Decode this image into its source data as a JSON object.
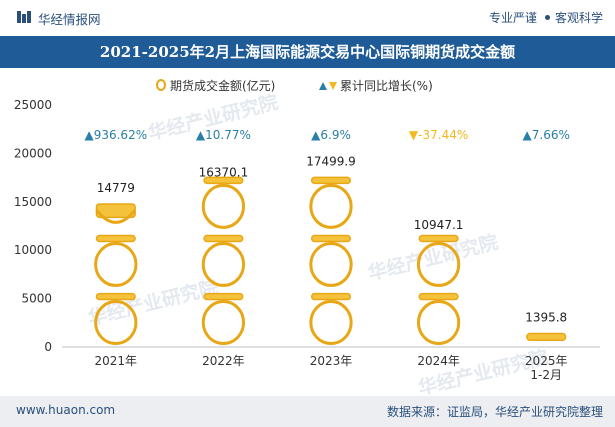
{
  "header": {
    "brand": "华经情报网",
    "tag1": "专业严谨",
    "tag2": "客观科学"
  },
  "title": "2021-2025年2月上海国际能源交易中心国际铜期货成交金额",
  "footer": {
    "url": "www.huaon.com",
    "source": "数据来源：证监局，华经产业研究院整理"
  },
  "watermark": "华经产业研究院",
  "colors": {
    "bar": "#f5c33b",
    "bar_edge": "#e8a716",
    "up": "#2a7fa8",
    "down": "#f2b81d",
    "title_bg": "#1f5b96"
  },
  "chart_data": {
    "type": "bar",
    "categories": [
      "2021年",
      "2022年",
      "2023年",
      "2024年",
      "2025年\n1-2月"
    ],
    "series": [
      {
        "name": "期货成交金额(亿元)",
        "values": [
          14779,
          16370.1,
          17499.9,
          10947.1,
          1395.8
        ],
        "value_labels": [
          "14779",
          "16370.1",
          "17499.9",
          "10947.1",
          "1395.8"
        ]
      },
      {
        "name": "累计同比增长(%)",
        "values": [
          936.62,
          10.77,
          6.9,
          -37.44,
          7.66
        ],
        "value_labels": [
          "▲936.62%",
          "▲10.77%",
          "▲6.9%",
          "▼-37.44%",
          "▲7.66%"
        ]
      }
    ],
    "y_ticks": [
      "0",
      "5000",
      "10000",
      "15000",
      "20000",
      "25000"
    ],
    "ylim": [
      0,
      25000
    ],
    "legend_position": "top-center",
    "legend_icons": [
      "pot-icon",
      "triangle-up-down-icon"
    ]
  }
}
